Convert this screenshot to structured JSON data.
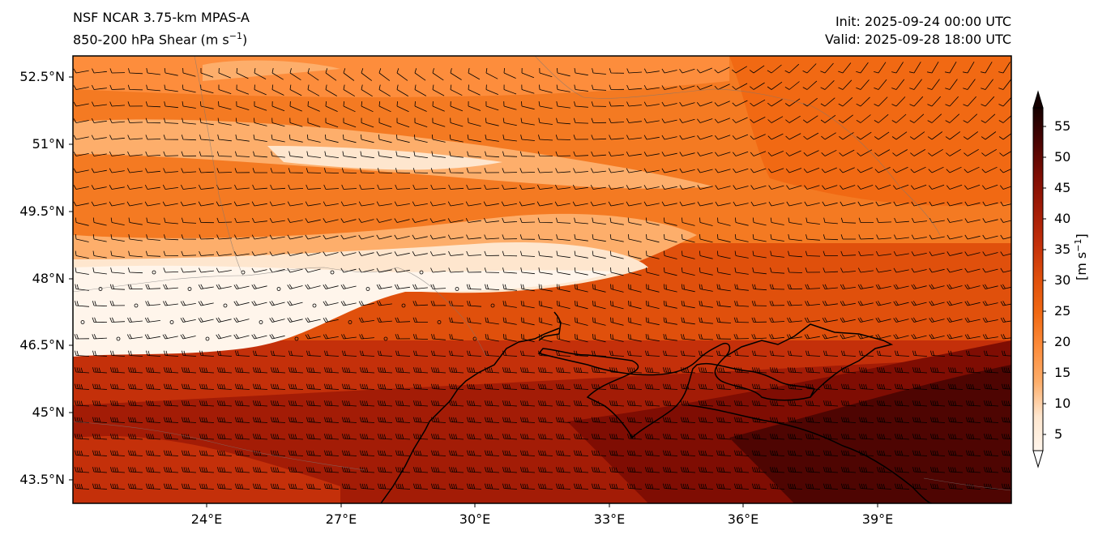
{
  "header": {
    "model": "NSF NCAR 3.75-km MPAS-A",
    "field": "850-200 hPa Shear (m s",
    "field_sup": "−1",
    "field_end": ")",
    "init": "Init: 2025-09-24 00:00 UTC",
    "valid": "Valid: 2025-09-28 18:00 UTC"
  },
  "axes": {
    "lat_labels": [
      "52.5°N",
      "51°N",
      "49.5°N",
      "48°N",
      "46.5°N",
      "45°N",
      "43.5°N"
    ],
    "lon_labels": [
      "24°E",
      "27°E",
      "30°E",
      "33°E",
      "36°E",
      "39°E"
    ]
  },
  "colorbar": {
    "title": "[m s",
    "title_sup": "−1",
    "title_end": "]",
    "labels": [
      "5",
      "10",
      "15",
      "20",
      "25",
      "30",
      "35",
      "40",
      "45",
      "50",
      "55"
    ],
    "colors": [
      "#fff5eb",
      "#fee6ce",
      "#fdd0a2",
      "#fdae6b",
      "#fd8d3c",
      "#f16913",
      "#e0500c",
      "#c4300a",
      "#a31c06",
      "#7f0d03",
      "#5a0602",
      "#2e0200"
    ]
  },
  "chart_data": {
    "type": "heatmap",
    "title": "850-200 hPa Shear (m s⁻¹)",
    "xlabel": "",
    "ylabel": "",
    "lon_range": [
      21,
      42
    ],
    "lat_range": [
      43,
      53
    ],
    "levels": [
      5,
      10,
      15,
      20,
      25,
      30,
      35,
      40,
      45,
      50,
      55
    ],
    "unit": "m s⁻¹"
  }
}
